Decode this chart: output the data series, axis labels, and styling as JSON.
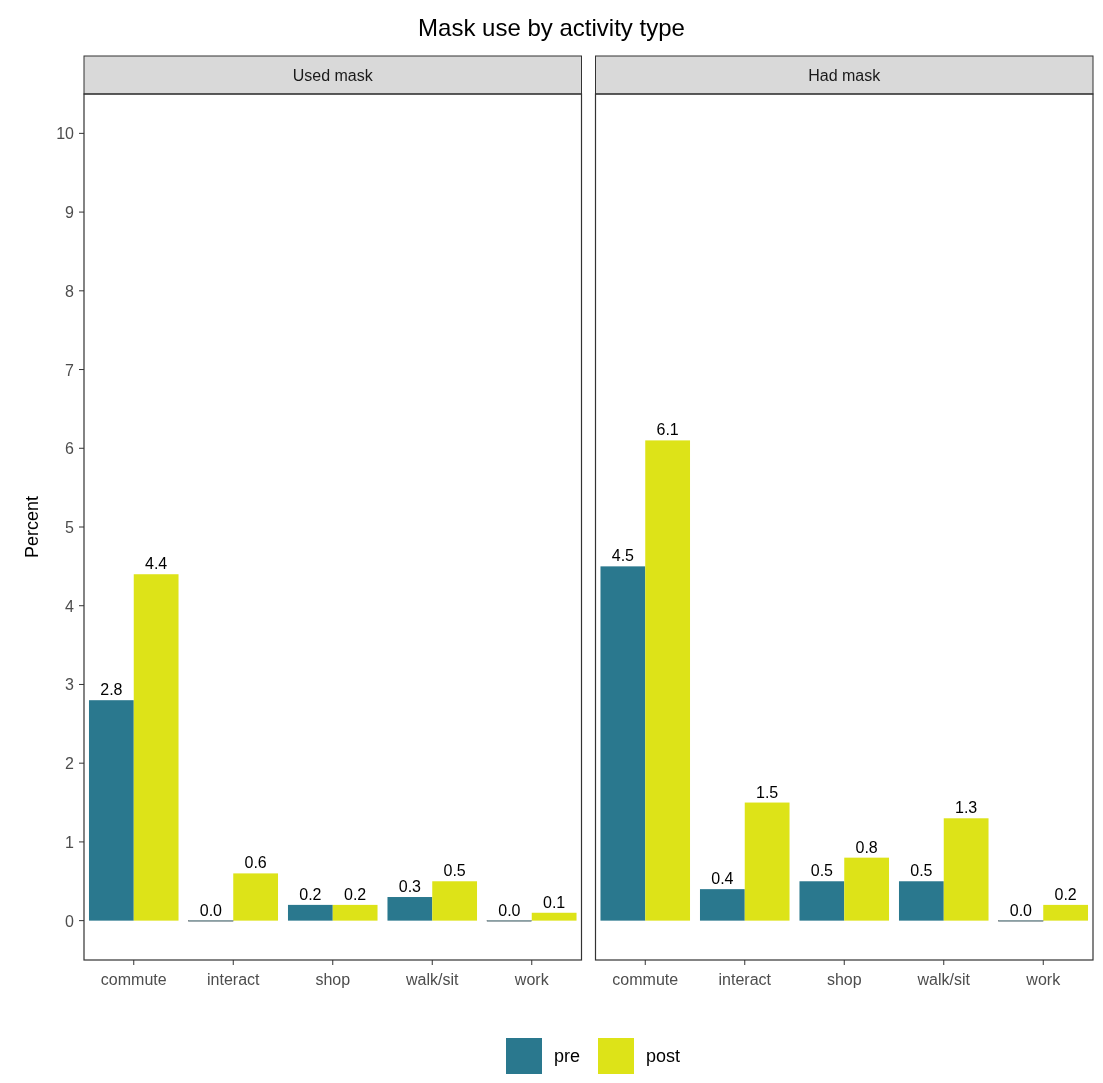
{
  "chart_data": [
    {
      "type": "bar",
      "title": "Mask use by activity type",
      "subtitle": "Used mask",
      "ylabel": "Percent",
      "categories": [
        "commute",
        "interact",
        "shop",
        "walk/sit",
        "work"
      ],
      "series": [
        {
          "name": "pre",
          "color": "#2a788e",
          "values": [
            2.8,
            0.0,
            0.2,
            0.3,
            0.0
          ],
          "value_labels": [
            "2.8",
            "0.0",
            "0.2",
            "0.3",
            "0.0"
          ]
        },
        {
          "name": "post",
          "color": "#dde318",
          "values": [
            4.4,
            0.6,
            0.2,
            0.5,
            0.1
          ],
          "value_labels": [
            "4.4",
            "0.6",
            "0.2",
            "0.5",
            "0.1"
          ]
        }
      ],
      "ylim": [
        -0.5,
        10.5
      ],
      "yticks": [
        0,
        1,
        2,
        3,
        4,
        5,
        6,
        7,
        8,
        9,
        10
      ],
      "legend": "bottom"
    },
    {
      "type": "bar",
      "subtitle": "Had mask",
      "categories": [
        "commute",
        "interact",
        "shop",
        "walk/sit",
        "work"
      ],
      "series": [
        {
          "color": "#2a788e",
          "values": [
            4.5,
            0.4,
            0.5,
            0.5,
            0.0
          ],
          "value_labels": [
            "4.5",
            "0.4",
            "0.5",
            "0.5",
            "0.0"
          ]
        },
        {
          "color": "#dde318",
          "values": [
            6.1,
            1.5,
            0.8,
            1.3,
            0.2
          ],
          "value_labels": [
            "6.1",
            "1.5",
            "0.8",
            "1.3",
            "0.2"
          ]
        }
      ],
      "ylim": [
        -0.5,
        10.5
      ],
      "yticks": [
        0,
        1,
        2,
        3,
        4,
        5,
        6,
        7,
        8,
        9,
        10
      ],
      "tick_labels": "x"
    }
  ]
}
